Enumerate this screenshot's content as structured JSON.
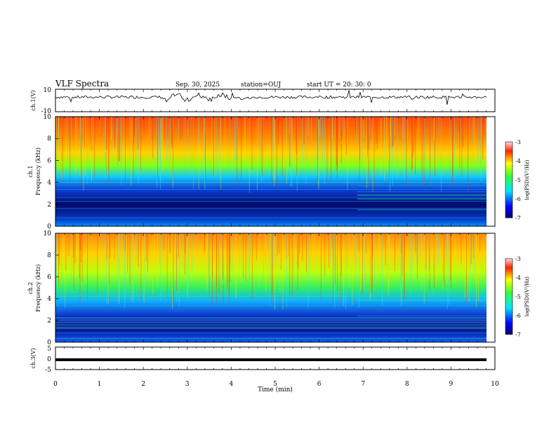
{
  "header": {
    "title": "VLF Spectra",
    "date": "Sep. 30, 2025",
    "station": "station=OUJ",
    "start": "start  UT =  20: 30: 0"
  },
  "chart_data": [
    {
      "type": "line",
      "ylabel": "ch.1(V)",
      "ylim": [
        -10,
        10
      ],
      "yticks": [
        "10",
        "-10"
      ],
      "xlim": [
        0,
        10
      ],
      "note": "waveform fluctuating around ~+3 V with bursts between 2.5 and 3.8 min"
    },
    {
      "type": "heatmap",
      "ylabel_top": "ch.1",
      "ylabel": "Frequency (kHz)",
      "ylim": [
        0,
        10
      ],
      "yticks": [
        "0",
        "2",
        "4",
        "6",
        "8",
        "10"
      ],
      "xlim": [
        0,
        10
      ],
      "colorbar": {
        "label": "log(PSD)(V²/Hz)",
        "range": [
          -7,
          -3
        ],
        "ticks": [
          "-3",
          "-4",
          "-5",
          "-6",
          "-7"
        ]
      }
    },
    {
      "type": "heatmap",
      "ylabel_top": "ch.2",
      "ylabel": "Frequency (kHz)",
      "ylim": [
        0,
        10
      ],
      "yticks": [
        "0",
        "2",
        "4",
        "6",
        "8",
        "10"
      ],
      "xlim": [
        0,
        10
      ],
      "colorbar": {
        "label": "log(PSD)(V²/Hz)",
        "range": [
          -7,
          -3
        ],
        "ticks": [
          "-3",
          "-4",
          "-5",
          "-6",
          "-7"
        ]
      }
    },
    {
      "type": "line",
      "ylabel": "ch.3(V)",
      "ylim": [
        -5,
        5
      ],
      "yticks": [
        "5",
        "0",
        "-5"
      ],
      "xlim": [
        0,
        10
      ],
      "xlabel": "Time (min)",
      "xticks": [
        "0",
        "1",
        "2",
        "3",
        "4",
        "5",
        "6",
        "7",
        "8",
        "9",
        "10"
      ],
      "note": "flat thick line near -1 V"
    }
  ]
}
